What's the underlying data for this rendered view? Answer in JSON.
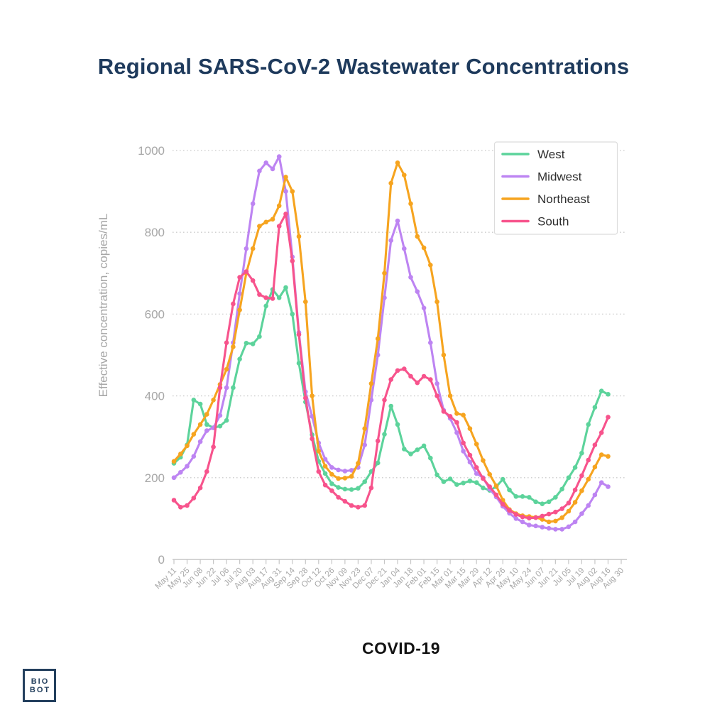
{
  "page": {
    "title": "Regional SARS-CoV-2 Wastewater Concentrations",
    "caption": "COVID-19",
    "logo": {
      "line1": "BIO",
      "line2": "BOT"
    }
  },
  "colors": {
    "title_navy": "#1e3a5c",
    "axis_text_gray": "#a7a7a7",
    "axis_line_gray": "#c6c6c6",
    "gridline_gray": "#cbcbcb",
    "legend_border": "#dcdcdc",
    "legend_text": "#2e2e2e",
    "caption_black": "#121212",
    "logo_navy": "#24405e",
    "west_green": "#5cd39b",
    "midwest_purple": "#bd84f2",
    "northeast_orange": "#f6a41f",
    "south_pink": "#f7538c"
  },
  "chart_data": {
    "type": "line",
    "title": "Regional SARS-CoV-2 Wastewater Concentrations",
    "xlabel": "COVID-19",
    "ylabel": "Effective concentration, copies/mL",
    "ylim": [
      0,
      1000
    ],
    "yticks": [
      0,
      200,
      400,
      600,
      800,
      1000
    ],
    "grid": "dotted-horizontal",
    "legend_position": "top-right",
    "markers": true,
    "points_per_label": 2,
    "x_labels": [
      "May 11",
      "May 25",
      "Jun 08",
      "Jun 22",
      "Jul 06",
      "Jul 20",
      "Aug 03",
      "Aug 17",
      "Aug 31",
      "Sep 14",
      "Sep 28",
      "Oct 12",
      "Oct 26",
      "Nov 09",
      "Nov 23",
      "Dec 07",
      "Dec 21",
      "Jan 04",
      "Jan 18",
      "Feb 01",
      "Feb 15",
      "Mar 01",
      "Mar 15",
      "Mar 29",
      "Apr 12",
      "Apr 26",
      "May 10",
      "May 24",
      "Jun 07",
      "Jun 21",
      "Jul 05",
      "Jul 19",
      "Aug 02",
      "Aug 16",
      "Aug 30"
    ],
    "series": [
      {
        "name": "West",
        "color": "#5cd39b",
        "values": [
          235,
          250,
          280,
          390,
          380,
          330,
          322,
          326,
          340,
          420,
          490,
          529,
          527,
          545,
          620,
          660,
          640,
          665,
          600,
          480,
          385,
          305,
          240,
          210,
          185,
          176,
          172,
          171,
          174,
          190,
          215,
          236,
          306,
          375,
          330,
          270,
          258,
          268,
          278,
          248,
          207,
          190,
          197,
          183,
          187,
          192,
          188,
          175,
          169,
          178,
          196,
          170,
          154,
          154,
          152,
          141,
          136,
          141,
          152,
          172,
          200,
          225,
          260,
          330,
          372,
          412,
          404
        ]
      },
      {
        "name": "Midwest",
        "color": "#bd84f2",
        "values": [
          200,
          213,
          228,
          252,
          288,
          315,
          322,
          352,
          420,
          530,
          650,
          760,
          870,
          950,
          970,
          955,
          985,
          900,
          740,
          555,
          410,
          350,
          285,
          245,
          225,
          219,
          216,
          218,
          225,
          280,
          390,
          500,
          640,
          780,
          828,
          760,
          690,
          655,
          615,
          530,
          430,
          365,
          345,
          310,
          265,
          238,
          210,
          200,
          172,
          153,
          130,
          113,
          100,
          92,
          84,
          82,
          79,
          76,
          74,
          74,
          80,
          92,
          112,
          132,
          158,
          188,
          178
        ]
      },
      {
        "name": "Northeast",
        "color": "#f6a41f",
        "values": [
          240,
          258,
          278,
          306,
          330,
          355,
          390,
          428,
          465,
          520,
          610,
          700,
          760,
          815,
          825,
          832,
          865,
          935,
          900,
          790,
          630,
          400,
          265,
          228,
          208,
          198,
          199,
          203,
          235,
          320,
          430,
          540,
          700,
          920,
          970,
          940,
          870,
          790,
          762,
          720,
          630,
          500,
          400,
          357,
          353,
          320,
          282,
          242,
          208,
          180,
          145,
          122,
          112,
          107,
          105,
          103,
          98,
          92,
          94,
          102,
          118,
          140,
          168,
          196,
          226,
          256,
          252
        ]
      },
      {
        "name": "South",
        "color": "#f7538c",
        "values": [
          145,
          128,
          132,
          150,
          175,
          215,
          275,
          420,
          530,
          625,
          690,
          704,
          682,
          648,
          640,
          638,
          815,
          845,
          730,
          550,
          395,
          295,
          215,
          182,
          168,
          152,
          142,
          132,
          128,
          132,
          175,
          290,
          390,
          440,
          462,
          466,
          448,
          432,
          448,
          440,
          400,
          362,
          350,
          335,
          285,
          255,
          225,
          198,
          178,
          158,
          135,
          120,
          110,
          104,
          101,
          102,
          106,
          111,
          116,
          124,
          138,
          170,
          205,
          243,
          280,
          310,
          348
        ]
      }
    ]
  }
}
